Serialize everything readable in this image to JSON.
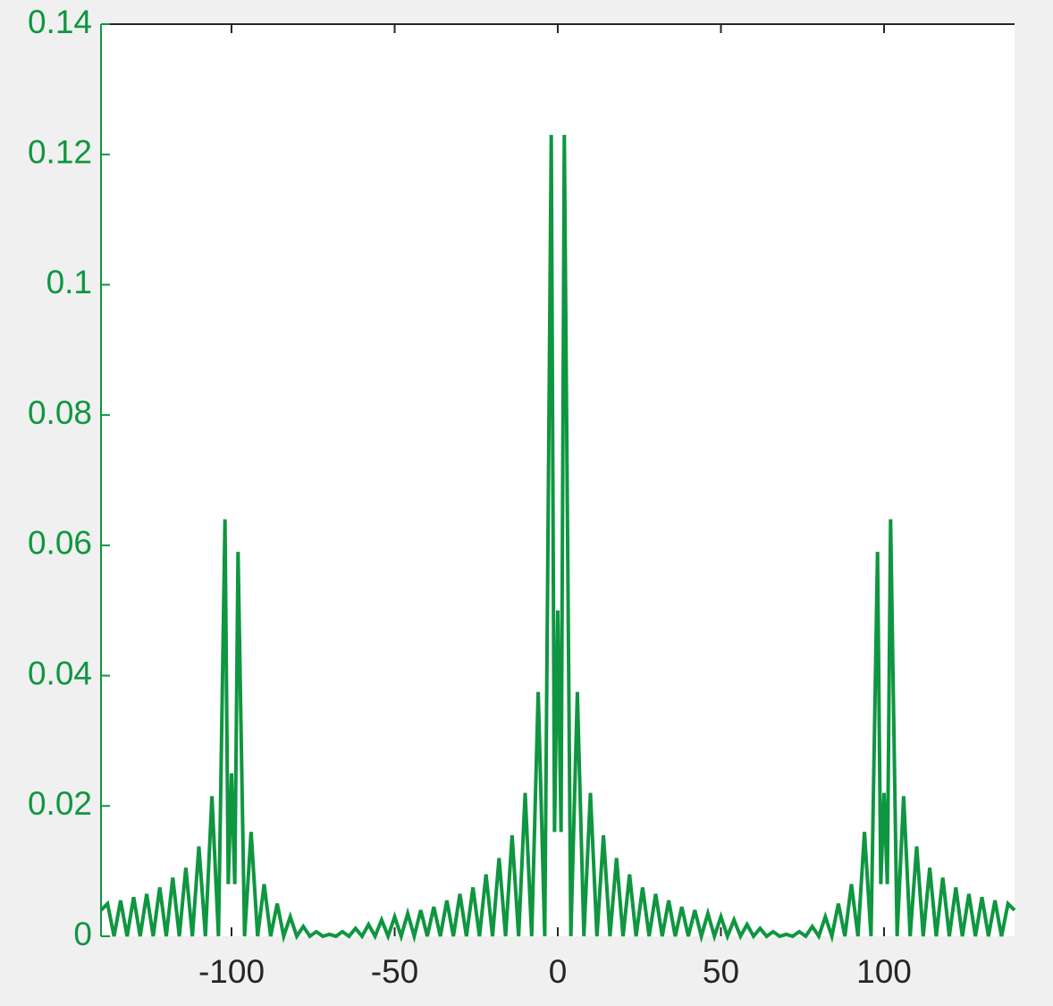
{
  "chart_data": {
    "type": "line",
    "x": [
      -140,
      -138,
      -136,
      -134,
      -132,
      -130,
      -128,
      -126,
      -124,
      -122,
      -120,
      -118,
      -116,
      -114,
      -112,
      -110,
      -108,
      -106,
      -104,
      -102,
      -101,
      -100,
      -99,
      -98,
      -96,
      -94,
      -92,
      -90,
      -88,
      -86,
      -84,
      -82,
      -80,
      -78,
      -76,
      -74,
      -72,
      -70,
      -68,
      -66,
      -64,
      -62,
      -60,
      -58,
      -56,
      -54,
      -52,
      -50,
      -48,
      -46,
      -44,
      -42,
      -40,
      -38,
      -36,
      -34,
      -32,
      -30,
      -28,
      -26,
      -24,
      -22,
      -20,
      -18,
      -16,
      -14,
      -12,
      -10,
      -8,
      -6,
      -4,
      -2,
      -1,
      0,
      1,
      2,
      4,
      6,
      8,
      10,
      12,
      14,
      16,
      18,
      20,
      22,
      24,
      26,
      28,
      30,
      32,
      34,
      36,
      38,
      40,
      42,
      44,
      46,
      48,
      50,
      52,
      54,
      56,
      58,
      60,
      62,
      64,
      66,
      68,
      70,
      72,
      74,
      76,
      78,
      80,
      82,
      84,
      86,
      88,
      90,
      92,
      94,
      96,
      98,
      99,
      100,
      101,
      102,
      104,
      106,
      108,
      110,
      112,
      114,
      116,
      118,
      120,
      122,
      124,
      126,
      128,
      130,
      132,
      134,
      136,
      138,
      140
    ],
    "values": [
      0.004,
      0.005,
      0,
      0.0055,
      0,
      0.006,
      0,
      0.0065,
      0,
      0.0075,
      0,
      0.009,
      0,
      0.0105,
      0,
      0.0138,
      0,
      0.0215,
      0,
      0.064,
      0.008,
      0.025,
      0.008,
      0.059,
      0,
      0.016,
      0,
      0.008,
      0,
      0.005,
      0,
      0.003,
      0,
      0.0015,
      0,
      0.0007,
      0,
      0.0003,
      0,
      0.0007,
      0,
      0.0012,
      0,
      0.0018,
      0,
      0.0025,
      0,
      0.003,
      0,
      0.0035,
      0,
      0.004,
      0,
      0.0045,
      0,
      0.0055,
      0,
      0.0065,
      0,
      0.0075,
      0,
      0.0095,
      0,
      0.012,
      0,
      0.0155,
      0,
      0.022,
      0,
      0.0375,
      0,
      0.123,
      0.016,
      0.05,
      0.016,
      0.123,
      0,
      0.0375,
      0,
      0.022,
      0,
      0.0155,
      0,
      0.012,
      0,
      0.0095,
      0,
      0.0075,
      0,
      0.0065,
      0,
      0.0055,
      0,
      0.0045,
      0,
      0.004,
      0,
      0.0035,
      0,
      0.003,
      0,
      0.0025,
      0,
      0.0018,
      0,
      0.0012,
      0,
      0.0007,
      0,
      0.0003,
      0,
      0.0007,
      0,
      0.0015,
      0,
      0.003,
      0,
      0.005,
      0,
      0.008,
      0,
      0.016,
      0,
      0.059,
      0.008,
      0.022,
      0.008,
      0.064,
      0,
      0.0215,
      0,
      0.0138,
      0,
      0.0105,
      0,
      0.009,
      0,
      0.0075,
      0,
      0.0065,
      0,
      0.006,
      0,
      0.0055,
      0,
      0.005,
      0.004
    ],
    "color": "#0f9640",
    "xlim": [
      -140,
      140
    ],
    "ylim": [
      0,
      0.14
    ],
    "xticks": [
      -100,
      -50,
      0,
      50,
      100
    ],
    "yticks": [
      0,
      0.02,
      0.04,
      0.06,
      0.08,
      0.1,
      0.12,
      0.14
    ]
  }
}
